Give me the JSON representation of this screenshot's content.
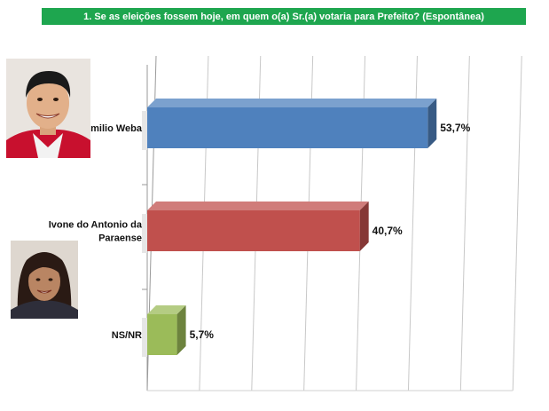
{
  "title": "1. Se as eleições fossem hoje, em quem o(a) Sr.(a) votaria para Prefeito? (Espontânea)",
  "chart_data": {
    "type": "bar",
    "orientation": "horizontal",
    "categories": [
      [
        "Emilio Weba"
      ],
      [
        "Ivone do Antonio da",
        "Paraense"
      ],
      [
        "NS/NR"
      ]
    ],
    "values": [
      53.7,
      40.7,
      5.7
    ],
    "value_labels": [
      "53,7%",
      "40,7%",
      "5,7%"
    ],
    "colors": [
      "#4f81bd",
      "#c0504d",
      "#9bbb59"
    ],
    "xlim": [
      0,
      70
    ],
    "grid": true,
    "legend": "none",
    "title": "1. Se as eleições fossem hoje, em quem o(a) Sr.(a) votaria para Prefeito? (Espontânea)"
  },
  "photos": [
    {
      "name": "emilio-weba-photo",
      "icon": "candidate-portrait-man-icon"
    },
    {
      "name": "ivone-photo",
      "icon": "candidate-portrait-woman-icon"
    }
  ]
}
